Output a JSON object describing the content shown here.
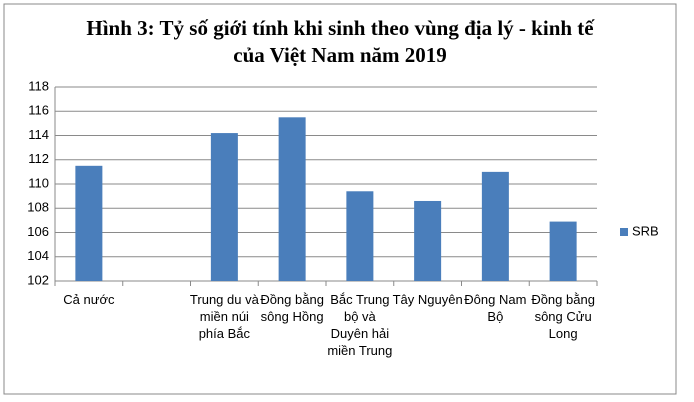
{
  "chart_data": {
    "type": "bar",
    "title": [
      "Hình 3: Tỷ số giới tính khi sinh theo vùng địa lý - kinh tế",
      "của Việt Nam năm 2019"
    ],
    "categories": [
      "Cả nước",
      null,
      "Trung du và miền núi phía Bắc",
      "Đồng bằng sông Hồng",
      "Bắc Trung bộ và Duyên hải miền Trung",
      "Tây Nguyên",
      "Đông Nam Bộ",
      "Đồng bằng sông Cửu Long"
    ],
    "series": [
      {
        "name": "SRB",
        "color": "#4a7ebb",
        "values": [
          111.5,
          null,
          114.2,
          115.5,
          109.4,
          108.6,
          111.0,
          106.9
        ]
      }
    ],
    "ylim": [
      102,
      118
    ],
    "yticks": [
      102,
      104,
      106,
      108,
      110,
      112,
      114,
      116,
      118
    ],
    "grid": true,
    "legend": "right"
  }
}
